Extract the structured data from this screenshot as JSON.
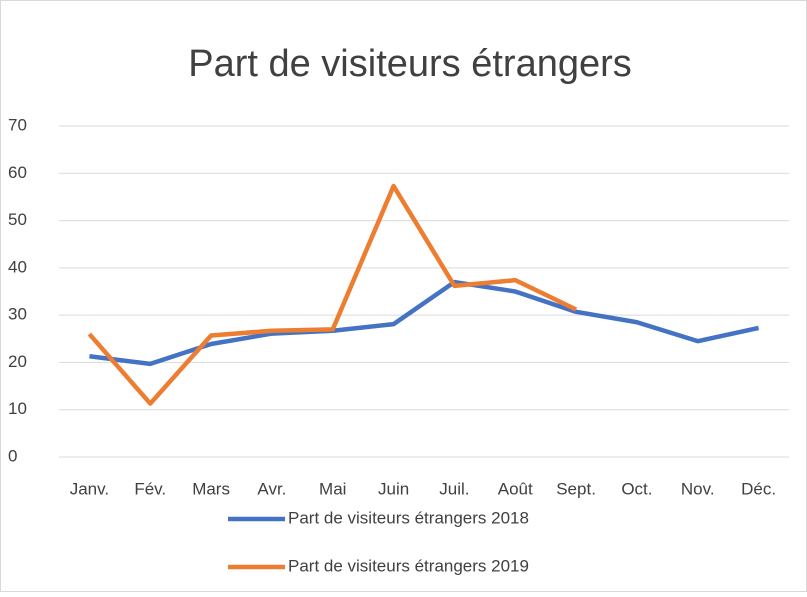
{
  "chart_data": {
    "type": "line",
    "title": "Part de visiteurs étrangers",
    "categories": [
      "Janv.",
      "Fév.",
      "Mars",
      "Avr.",
      "Mai",
      "Juin",
      "Juil.",
      "Août",
      "Sept.",
      "Oct.",
      "Nov.",
      "Déc."
    ],
    "series": [
      {
        "name": "Part de visiteurs étrangers 2018",
        "color": "#4472c4",
        "values": [
          21.3,
          19.7,
          23.9,
          26.1,
          26.7,
          28.1,
          37,
          35,
          30.7,
          28.5,
          24.5,
          27.3
        ]
      },
      {
        "name": "Part de visiteurs étrangers 2019",
        "color": "#ed7d31",
        "values": [
          26,
          11.3,
          25.7,
          26.7,
          27,
          57.3,
          36.2,
          37.4,
          31.2,
          null,
          null,
          null
        ]
      }
    ],
    "ylim": [
      0,
      70
    ],
    "yticks": [
      0,
      10,
      20,
      30,
      40,
      50,
      60,
      70
    ],
    "grid": true,
    "legend": "bottom"
  }
}
